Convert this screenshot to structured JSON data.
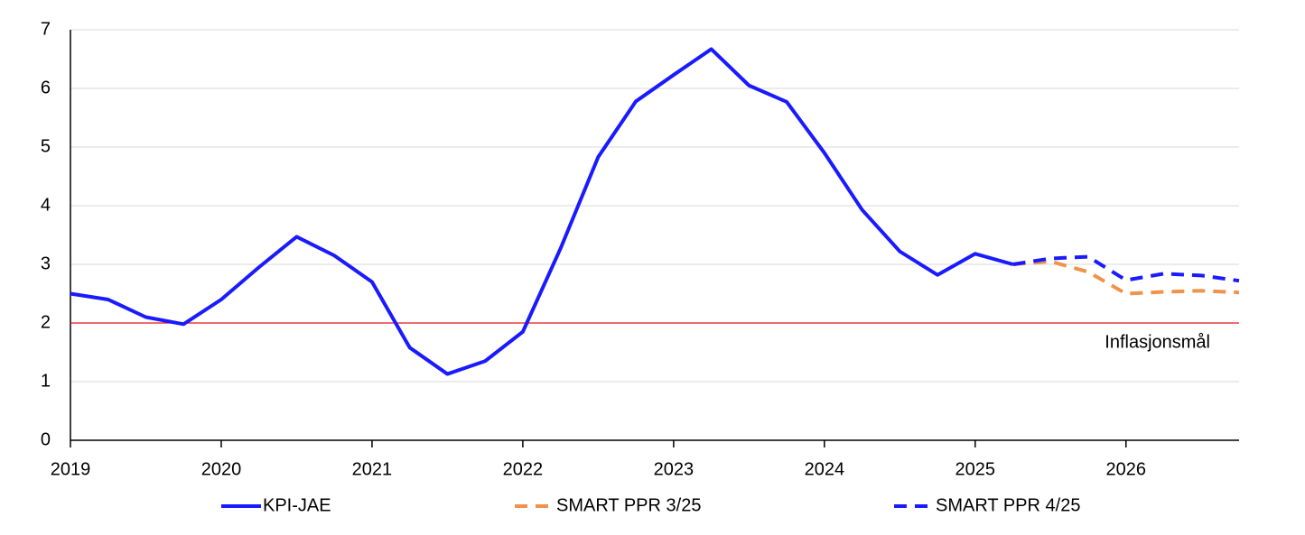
{
  "chart_data": {
    "type": "line",
    "x": [
      2019,
      2019.25,
      2019.5,
      2019.75,
      2020,
      2020.25,
      2020.5,
      2020.75,
      2021,
      2021.25,
      2021.5,
      2021.75,
      2022,
      2022.25,
      2022.5,
      2022.75,
      2023,
      2023.25,
      2023.5,
      2023.75,
      2024,
      2024.25,
      2024.5,
      2024.75,
      2025,
      2025.25,
      2025.5,
      2025.75,
      2026,
      2026.25,
      2026.5,
      2026.75
    ],
    "series": [
      {
        "name": "KPI-JAE",
        "color": "#1a1aff",
        "dashed": false,
        "values": [
          2.5,
          2.4,
          2.1,
          1.98,
          2.4,
          2.95,
          3.47,
          3.15,
          2.7,
          1.58,
          1.13,
          1.35,
          1.85,
          3.27,
          4.83,
          5.78,
          6.23,
          6.67,
          6.05,
          5.77,
          4.9,
          3.93,
          3.22,
          2.82,
          3.18,
          3.0,
          null,
          null,
          null,
          null,
          null,
          null
        ]
      },
      {
        "name": "SMART PPR 3/25",
        "color": "#f0924a",
        "dashed": true,
        "values": [
          null,
          null,
          null,
          null,
          null,
          null,
          null,
          null,
          null,
          null,
          null,
          null,
          null,
          null,
          null,
          null,
          null,
          null,
          null,
          null,
          null,
          null,
          null,
          null,
          null,
          3.0,
          3.05,
          2.87,
          2.5,
          2.53,
          2.55,
          2.52
        ]
      },
      {
        "name": "SMART PPR 4/25",
        "color": "#1a1aff",
        "dashed": true,
        "values": [
          null,
          null,
          null,
          null,
          null,
          null,
          null,
          null,
          null,
          null,
          null,
          null,
          null,
          null,
          null,
          null,
          null,
          null,
          null,
          null,
          null,
          null,
          null,
          null,
          null,
          3.0,
          3.1,
          3.13,
          2.73,
          2.84,
          2.81,
          2.72
        ]
      }
    ],
    "xlim": [
      2019,
      2026.75
    ],
    "xticks": [
      2019,
      2020,
      2021,
      2022,
      2023,
      2024,
      2025,
      2026
    ],
    "ylim": [
      0,
      7
    ],
    "yticks": [
      0,
      1,
      2,
      3,
      4,
      5,
      6,
      7
    ],
    "grid": true,
    "reference_line": {
      "value": 2,
      "label": "Inflasjonsmål",
      "color": "#e8141b"
    },
    "legend": "bottom"
  }
}
